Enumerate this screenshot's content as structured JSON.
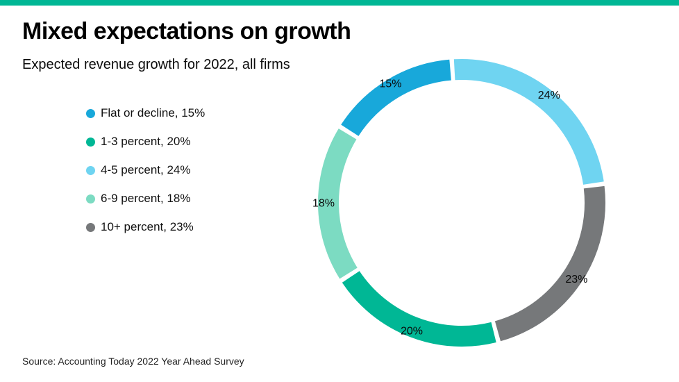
{
  "page": {
    "title": "Mixed expectations on growth",
    "subtitle": "Expected revenue growth for 2022, all firms",
    "source": "Source: Accounting Today 2022 Year Ahead Survey",
    "accent_color": "#00b795",
    "background_color": "#ffffff"
  },
  "chart_data": {
    "type": "pie",
    "subtype": "donut",
    "title": "Mixed expectations on growth",
    "subtitle": "Expected revenue growth for 2022, all firms",
    "source": "Source: Accounting Today 2022 Year Ahead Survey",
    "legend_position": "left",
    "total": 100,
    "segments": [
      {
        "label": "Flat or decline",
        "value": 15,
        "pct_label": "15%",
        "legend_text": "Flat or decline, 15%",
        "color": "#18a8da"
      },
      {
        "label": "1-3 percent",
        "value": 20,
        "pct_label": "20%",
        "legend_text": "1-3 percent, 20%",
        "color": "#00b795"
      },
      {
        "label": "4-5 percent",
        "value": 24,
        "pct_label": "24%",
        "legend_text": "4-5 percent, 24%",
        "color": "#6fd4f1"
      },
      {
        "label": "6-9 percent",
        "value": 18,
        "pct_label": "18%",
        "legend_text": "6-9 percent, 18%",
        "color": "#7cdbc2"
      },
      {
        "label": "10+ percent",
        "value": 23,
        "pct_label": "23%",
        "legend_text": "10+ percent, 23%",
        "color": "#76787a"
      }
    ],
    "draw_order_clockwise_from_top": [
      2,
      4,
      1,
      3,
      0
    ]
  }
}
